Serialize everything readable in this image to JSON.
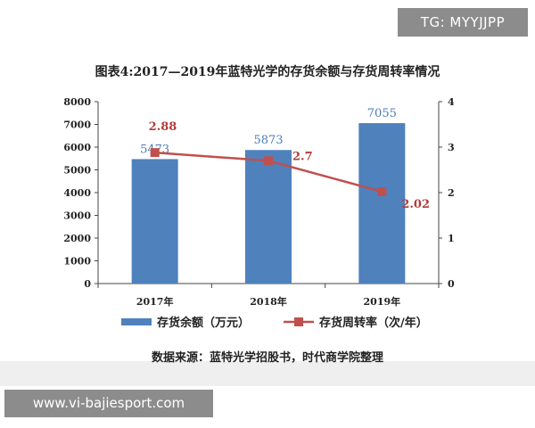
{
  "watermarks": {
    "top": "TG: MYYJJPP",
    "bottom": "www.vi-bajiesport.com"
  },
  "source": "数据来源：蓝特光学招股书，时代商学院整理",
  "colors": {
    "bar": "#4f81bd",
    "line": "#c0504d",
    "bar_label": "#4a7bbd",
    "line_label": "#b23c3a"
  },
  "chart_data": {
    "type": "bar",
    "title": "图表4:2017—2019年蓝特光学的存货余额与存货周转率情况",
    "categories": [
      "2017年",
      "2018年",
      "2019年"
    ],
    "ylim": [
      0,
      8000
    ],
    "y2lim": [
      0,
      4
    ],
    "yticks": [
      "0",
      "1000",
      "2000",
      "3000",
      "4000",
      "5000",
      "6000",
      "7000",
      "8000"
    ],
    "y2ticks": [
      "0",
      "1",
      "2",
      "3",
      "4"
    ],
    "legend_position": "bottom",
    "series": [
      {
        "name": "存货余额（万元）",
        "type": "bar",
        "axis": "left",
        "values": [
          5473,
          5873,
          7055
        ],
        "labels": [
          "5473",
          "5873",
          "7055"
        ]
      },
      {
        "name": "存货周转率（次/年）",
        "type": "line",
        "axis": "right",
        "values": [
          2.88,
          2.7,
          2.02
        ],
        "labels": [
          "2.88",
          "2.7",
          "2.02"
        ]
      }
    ]
  }
}
